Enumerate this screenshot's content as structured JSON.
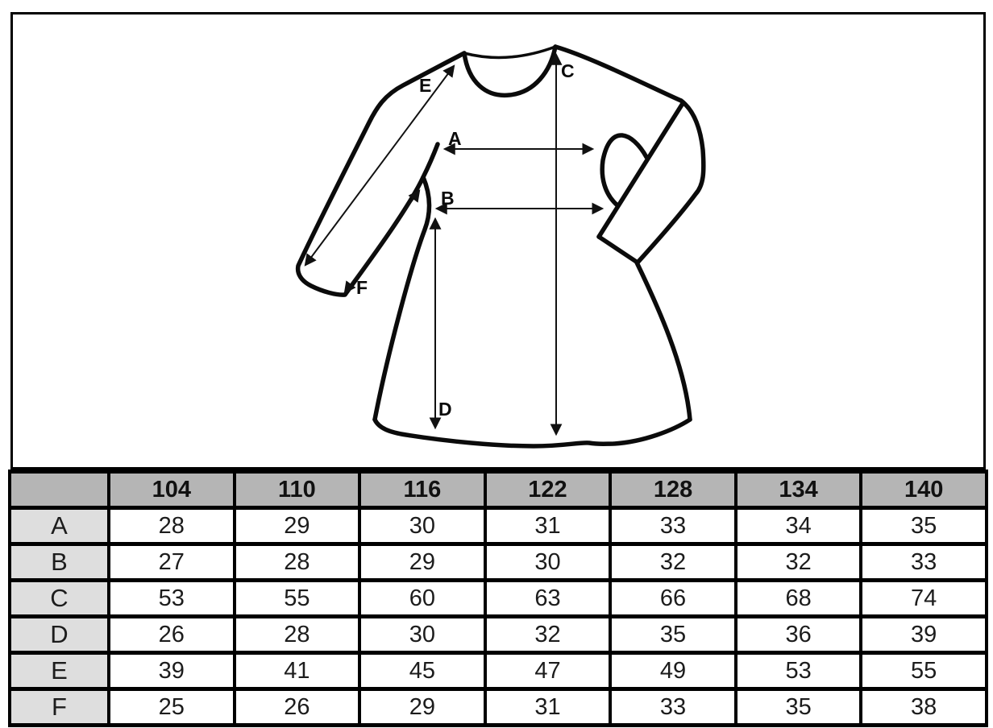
{
  "diagram": {
    "labels": {
      "A": "A",
      "B": "B",
      "C": "C",
      "D": "D",
      "E": "E",
      "F": "F"
    }
  },
  "table": {
    "corner_label": "",
    "sizes": [
      "104",
      "110",
      "116",
      "122",
      "128",
      "134",
      "140"
    ],
    "rows": [
      {
        "label": "A",
        "values": [
          "28",
          "29",
          "30",
          "31",
          "33",
          "34",
          "35"
        ]
      },
      {
        "label": "B",
        "values": [
          "27",
          "28",
          "29",
          "30",
          "32",
          "32",
          "33"
        ]
      },
      {
        "label": "C",
        "values": [
          "53",
          "55",
          "60",
          "63",
          "66",
          "68",
          "74"
        ]
      },
      {
        "label": "D",
        "values": [
          "26",
          "28",
          "30",
          "32",
          "35",
          "36",
          "39"
        ]
      },
      {
        "label": "E",
        "values": [
          "39",
          "41",
          "45",
          "47",
          "49",
          "53",
          "55"
        ]
      },
      {
        "label": "F",
        "values": [
          "25",
          "26",
          "29",
          "31",
          "33",
          "35",
          "38"
        ]
      }
    ]
  },
  "chart_data": {
    "type": "table",
    "columns": [
      "",
      "104",
      "110",
      "116",
      "122",
      "128",
      "134",
      "140"
    ],
    "rows": [
      [
        "A",
        28,
        29,
        30,
        31,
        33,
        34,
        35
      ],
      [
        "B",
        27,
        28,
        29,
        30,
        32,
        32,
        33
      ],
      [
        "C",
        53,
        55,
        60,
        63,
        66,
        68,
        74
      ],
      [
        "D",
        26,
        28,
        30,
        32,
        35,
        36,
        39
      ],
      [
        "E",
        39,
        41,
        45,
        47,
        49,
        53,
        55
      ],
      [
        "F",
        25,
        26,
        29,
        31,
        33,
        35,
        38
      ]
    ]
  },
  "colors": {
    "header_bg": "#b5b5b5",
    "row_label_bg": "#dedede",
    "line": "#000000",
    "background": "#ffffff"
  }
}
